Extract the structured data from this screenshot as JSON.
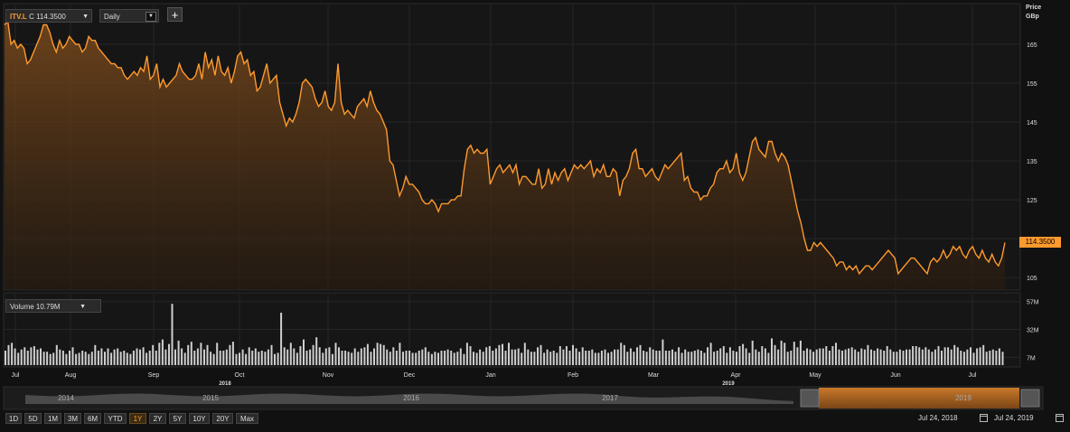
{
  "toolbar": {
    "ticker_symbol": "ITV.L",
    "ticker_quote": "C 114.3500",
    "interval": "Daily",
    "add_label": "+"
  },
  "volume_selector": {
    "label": "Volume 10.79M"
  },
  "price_axis_title_line1": "Price",
  "price_axis_title_line2": "GBp",
  "last_price_tag": "114.3500",
  "range_buttons": [
    "1D",
    "5D",
    "1M",
    "3M",
    "6M",
    "YTD",
    "1Y",
    "2Y",
    "5Y",
    "10Y",
    "20Y",
    "Max"
  ],
  "active_range": "1Y",
  "date_from": "Jul 24, 2018",
  "date_to": "Jul 24, 2019",
  "colors": {
    "accent": "#ff9a2e",
    "background": "#111111",
    "grid": "#2a2a2a",
    "volume": "#cfcfcf"
  },
  "chart_data": [
    {
      "type": "area",
      "title": "",
      "series": [
        {
          "name": "ITV.L",
          "values": [
            170,
            171,
            165,
            166,
            164,
            165,
            164,
            160,
            161,
            163,
            165,
            167,
            170,
            170,
            168,
            165,
            163,
            166,
            164,
            165,
            167,
            166,
            165,
            165,
            163,
            164,
            167,
            166,
            166,
            164,
            163,
            162,
            161,
            160,
            160,
            159,
            159,
            157,
            156,
            157,
            158,
            157,
            159,
            158,
            162,
            156,
            157,
            160,
            154,
            156,
            154,
            155,
            156,
            157,
            160,
            158,
            157,
            156,
            156,
            157,
            160,
            156,
            163,
            159,
            161,
            157,
            162,
            158,
            157,
            159,
            155,
            158,
            162,
            163,
            160,
            161,
            157,
            158,
            153,
            154,
            157,
            160,
            155,
            156,
            157,
            150,
            147,
            144,
            146,
            145,
            147,
            150,
            155,
            156,
            155,
            154,
            151,
            149,
            150,
            153,
            149,
            148,
            150,
            160,
            150,
            147,
            148,
            147,
            146,
            149,
            150,
            151,
            149,
            153,
            150,
            148,
            147,
            145,
            143,
            135,
            134,
            130,
            126,
            128,
            131,
            129,
            129,
            128,
            127,
            125,
            124,
            124,
            125,
            124,
            122,
            124,
            124,
            124,
            125,
            125,
            126,
            126,
            133,
            138,
            139,
            137,
            138,
            137,
            137,
            138,
            129,
            131,
            133,
            134,
            132,
            133,
            134,
            132,
            134,
            129,
            131,
            131,
            130,
            129,
            129,
            133,
            128,
            129,
            133,
            129,
            132,
            130,
            132,
            133,
            130,
            132,
            134,
            133,
            134,
            133,
            134,
            135,
            131,
            133,
            132,
            134,
            131,
            131,
            133,
            132,
            126,
            130,
            131,
            133,
            137,
            138,
            133,
            133,
            131,
            132,
            133,
            131,
            130,
            132,
            134,
            133,
            134,
            135,
            136,
            137,
            130,
            131,
            128,
            127,
            127,
            125,
            126,
            126,
            128,
            129,
            132,
            133,
            133,
            135,
            132,
            133,
            137,
            132,
            130,
            132,
            136,
            140,
            141,
            138,
            137,
            136,
            140,
            140,
            137,
            135,
            137,
            136,
            134,
            130,
            126,
            122,
            119,
            115,
            112,
            112,
            114,
            113,
            114,
            113,
            112,
            111,
            110,
            108,
            109,
            109,
            107,
            108,
            107,
            108,
            106,
            107,
            108,
            108,
            107,
            108,
            109,
            110,
            111,
            112,
            111,
            110,
            106,
            107,
            108,
            109,
            110,
            110,
            109,
            108,
            107,
            106,
            109,
            110,
            109,
            110,
            112,
            110,
            111,
            113,
            112,
            113,
            111,
            110,
            112,
            113,
            111,
            110,
            112,
            110,
            109,
            111,
            109,
            108,
            110,
            114
          ]
        }
      ],
      "x_tick_labels": [
        "Jul",
        "Aug",
        "Sep",
        "Oct",
        "Nov",
        "Dec",
        "Jan",
        "Feb",
        "Mar",
        "Apr",
        "May",
        "Jun",
        "Jul"
      ],
      "year_labels": [
        "2018",
        "2019"
      ],
      "y_ticks": [
        105,
        115,
        125,
        135,
        145,
        155,
        165
      ],
      "y_tick_labels": [
        "105",
        "114.3500",
        "125",
        "135",
        "145",
        "155",
        "165"
      ],
      "ylim": [
        102,
        175
      ],
      "grid": true
    },
    {
      "type": "bar",
      "title": "Volume",
      "y_tick_labels": [
        "7M",
        "32M",
        "57M"
      ],
      "y_ticks": [
        7,
        32,
        57
      ],
      "ylim": [
        0,
        60
      ],
      "series": [
        {
          "name": "Volume",
          "values": [
            13,
            18,
            20,
            15,
            11,
            14,
            16,
            13,
            16,
            17,
            14,
            15,
            12,
            12,
            10,
            11,
            18,
            14,
            13,
            10,
            13,
            16,
            10,
            11,
            13,
            12,
            10,
            12,
            18,
            13,
            15,
            12,
            15,
            11,
            14,
            15,
            12,
            13,
            11,
            10,
            13,
            15,
            14,
            16,
            11,
            13,
            18,
            13,
            20,
            23,
            14,
            19,
            55,
            14,
            22,
            15,
            11,
            18,
            21,
            13,
            15,
            20,
            14,
            18,
            12,
            10,
            20,
            13,
            13,
            14,
            18,
            21,
            10,
            11,
            14,
            10,
            16,
            13,
            15,
            12,
            13,
            12,
            14,
            18,
            10,
            11,
            47,
            16,
            14,
            20,
            15,
            11,
            17,
            23,
            13,
            14,
            18,
            25,
            16,
            11,
            15,
            16,
            10,
            20,
            16,
            13,
            13,
            12,
            11,
            15,
            12,
            15,
            16,
            19,
            12,
            15,
            20,
            19,
            18,
            14,
            12,
            16,
            13,
            20,
            12,
            13,
            13,
            11,
            11,
            13,
            14,
            16,
            12,
            10,
            12,
            11,
            13,
            13,
            14,
            13,
            11,
            12,
            15,
            10,
            20,
            17,
            12,
            11,
            14,
            12,
            16,
            17,
            13,
            15,
            18,
            19,
            13,
            20,
            14,
            14,
            15,
            11,
            20,
            14,
            12,
            12,
            16,
            18,
            11,
            14,
            12,
            13,
            11,
            17,
            14,
            17,
            13,
            18,
            15,
            12,
            16,
            13,
            13,
            14,
            11,
            11,
            13,
            14,
            11,
            12,
            14,
            14,
            20,
            18,
            12,
            15,
            12,
            16,
            18,
            13,
            12,
            16,
            14,
            13,
            13,
            23,
            13,
            13,
            14,
            12,
            16,
            11,
            14,
            12,
            12,
            13,
            14,
            13,
            11,
            16,
            20,
            12,
            13,
            15,
            17,
            11,
            16,
            13,
            12,
            17,
            19,
            15,
            11,
            22,
            14,
            12,
            17,
            15,
            11,
            24,
            18,
            14,
            22,
            20,
            12,
            13,
            21,
            16,
            22,
            13,
            15,
            14,
            12,
            14,
            15,
            15,
            17,
            13,
            17,
            20,
            14,
            13,
            14,
            15,
            16,
            14,
            12,
            15,
            14,
            18,
            14,
            13,
            15,
            14,
            13,
            17,
            14,
            12,
            12,
            14,
            13,
            14,
            14,
            17,
            17,
            16,
            14,
            16,
            14,
            12,
            14,
            17,
            13,
            16,
            16,
            14,
            18,
            16,
            13,
            12,
            14,
            16,
            11,
            15,
            16,
            18,
            12,
            13,
            14,
            13,
            15,
            12
          ]
        }
      ]
    }
  ],
  "navigator": {
    "year_labels": [
      "2014",
      "2015",
      "2016",
      "2017",
      "2019"
    ]
  }
}
